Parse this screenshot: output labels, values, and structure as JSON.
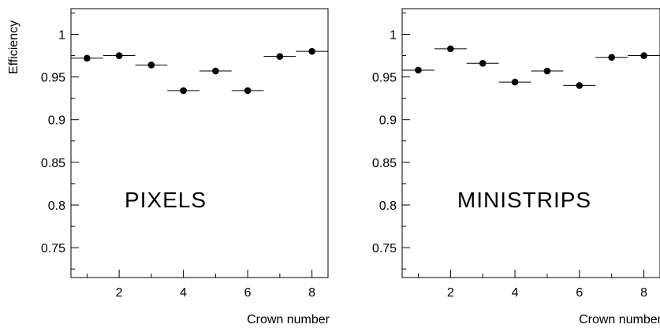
{
  "chart_data": [
    {
      "type": "scatter",
      "panel_label": "PIXELS",
      "ylabel": "Efficiency",
      "xlabel": "Crown number",
      "xlim": [
        0.5,
        8.5
      ],
      "ylim": [
        0.715,
        1.03
      ],
      "x_major_ticks": [
        2,
        4,
        6,
        8
      ],
      "y_major_ticks": [
        0.75,
        0.8,
        0.85,
        0.9,
        0.95,
        1
      ],
      "x_tick_labels": [
        "2",
        "4",
        "6",
        "8"
      ],
      "y_tick_labels": [
        "0.75",
        "0.8",
        "0.85",
        "0.9",
        "0.95",
        "1"
      ],
      "x_error_halfwidth": 0.5,
      "grid": false,
      "series": [
        {
          "x": [
            1,
            2,
            3,
            4,
            5,
            6,
            7,
            8
          ],
          "values": [
            0.972,
            0.975,
            0.964,
            0.934,
            0.957,
            0.934,
            0.974,
            0.98
          ]
        }
      ]
    },
    {
      "type": "scatter",
      "panel_label": "MINISTRIPS",
      "ylabel": "",
      "xlabel": "Crown number",
      "xlim": [
        0.5,
        8.5
      ],
      "ylim": [
        0.715,
        1.03
      ],
      "x_major_ticks": [
        2,
        4,
        6,
        8
      ],
      "y_major_ticks": [
        0.75,
        0.8,
        0.85,
        0.9,
        0.95,
        1
      ],
      "x_tick_labels": [
        "2",
        "4",
        "6",
        "8"
      ],
      "y_tick_labels": [
        "0.75",
        "0.8",
        "0.85",
        "0.9",
        "0.95",
        "1"
      ],
      "x_error_halfwidth": 0.5,
      "grid": false,
      "series": [
        {
          "x": [
            1,
            2,
            3,
            4,
            5,
            6,
            7,
            8
          ],
          "values": [
            0.958,
            0.983,
            0.966,
            0.944,
            0.957,
            0.94,
            0.973,
            0.975
          ]
        }
      ]
    }
  ]
}
